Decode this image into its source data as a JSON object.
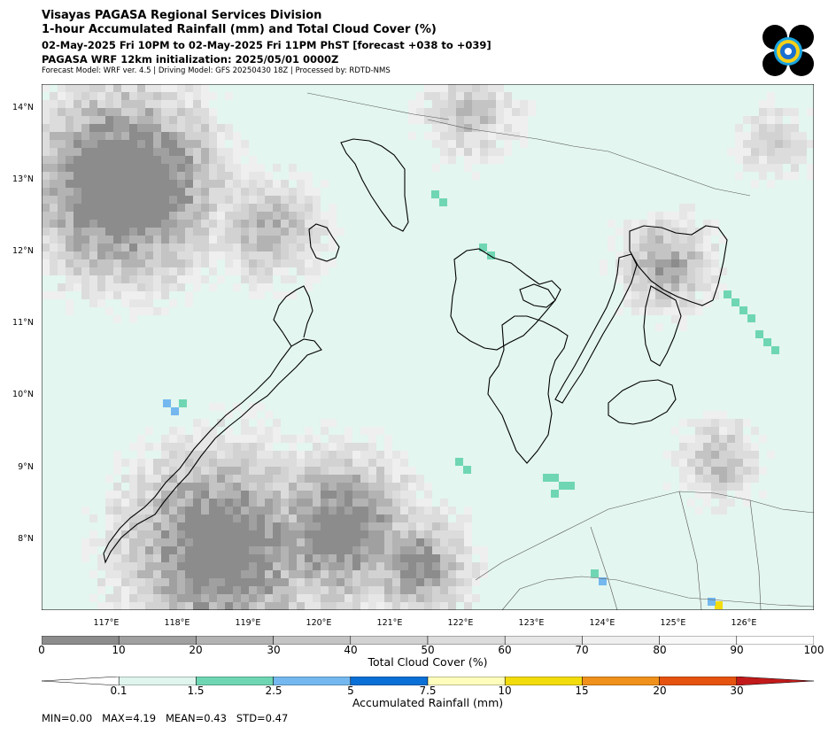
{
  "header": {
    "line1": "Visayas PAGASA Regional Services Division",
    "line2": "1-hour Accumulated Rainfall (mm) and Total Cloud Cover (%)",
    "line3": "02-May-2025 Fri 10PM to 02-May-2025 Fri 11PM PhST [forecast +038 to +039]",
    "line4": "PAGASA WRF 12km initialization: 2025/05/01 0000Z",
    "line5": "Forecast Model: WRF ver. 4.5 | Driving Model: GFS 20250430 18Z | Processed by: RDTD-NMS"
  },
  "map": {
    "lat_labels": [
      "14°N",
      "13°N",
      "12°N",
      "11°N",
      "10°N",
      "9°N",
      "8°N"
    ],
    "lon_labels": [
      "117°E",
      "118°E",
      "119°E",
      "120°E",
      "121°E",
      "122°E",
      "123°E",
      "124°E",
      "125°E",
      "126°E"
    ],
    "extent": {
      "lon": [
        116.0,
        126.9
      ],
      "lat": [
        7.0,
        14.3
      ]
    }
  },
  "cloud_legend": {
    "label": "Total Cloud Cover (%)",
    "ticks": [
      "0",
      "10",
      "20",
      "30",
      "40",
      "50",
      "60",
      "70",
      "80",
      "90",
      "100"
    ],
    "colors": [
      "#8c8c8c",
      "#a0a0a0",
      "#b3b3b3",
      "#c4c4c4",
      "#d2d2d2",
      "#dcdcdc",
      "#e6e6e6",
      "#efefef",
      "#f8f8f8",
      "#ffffff"
    ]
  },
  "rain_legend": {
    "label": "Accumulated Rainfall (mm)",
    "ticks": [
      "0.1",
      "1.5",
      "2.5",
      "5",
      "7.5",
      "10",
      "15",
      "20",
      "30"
    ],
    "colors": [
      "#ffffff",
      "#dff5ee",
      "#6fd6b3",
      "#74b8ef",
      "#0a6fd6",
      "#fffdbc",
      "#f2dc0b",
      "#f0911c",
      "#e5530f",
      "#c21a1a"
    ]
  },
  "stats": "MIN=0.00   MAX=4.19   MEAN=0.43   STD=0.47"
}
